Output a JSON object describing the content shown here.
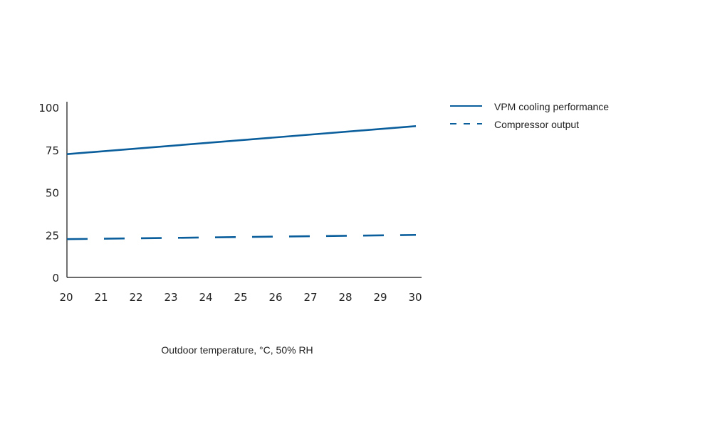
{
  "chart_data": {
    "type": "line",
    "title": "",
    "xlabel": "Outdoor temperature, °C, 50% RH",
    "ylabel": "",
    "x": [
      20,
      30
    ],
    "xticks": [
      "20",
      "21",
      "22",
      "23",
      "24",
      "25",
      "26",
      "27",
      "28",
      "29",
      "30"
    ],
    "yticks": [
      "0",
      "25",
      "50",
      "75",
      "100"
    ],
    "xlim": [
      20,
      30
    ],
    "ylim": [
      0,
      100
    ],
    "grid": false,
    "legend_position": "right",
    "series": [
      {
        "name": "VPM cooling performance",
        "values": [
          72.5,
          89
        ],
        "style": "solid",
        "color": "#0a5e9c"
      },
      {
        "name": "Compressor output",
        "values": [
          22.5,
          25
        ],
        "style": "dashed",
        "color": "#0a5e9c"
      }
    ]
  }
}
